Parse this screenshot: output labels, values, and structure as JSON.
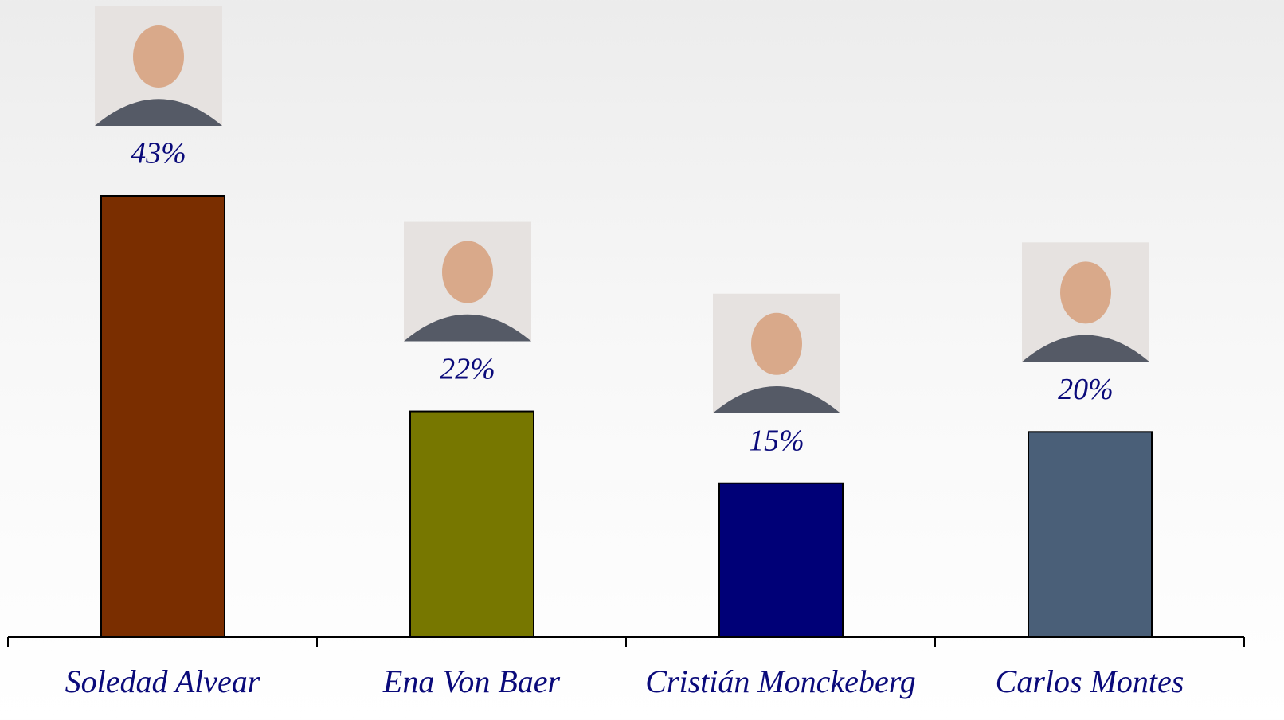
{
  "chart_data": {
    "type": "bar",
    "categories": [
      "Soledad Alvear",
      "Ena Von Baer",
      "Cristián Monckeberg",
      "Carlos Montes"
    ],
    "values": [
      43,
      22,
      15,
      20
    ],
    "value_labels": [
      "43%",
      "22%",
      "15%",
      "20%"
    ],
    "colors": [
      "#7a2e00",
      "#777700",
      "#000077",
      "#4a5f78"
    ]
  }
}
